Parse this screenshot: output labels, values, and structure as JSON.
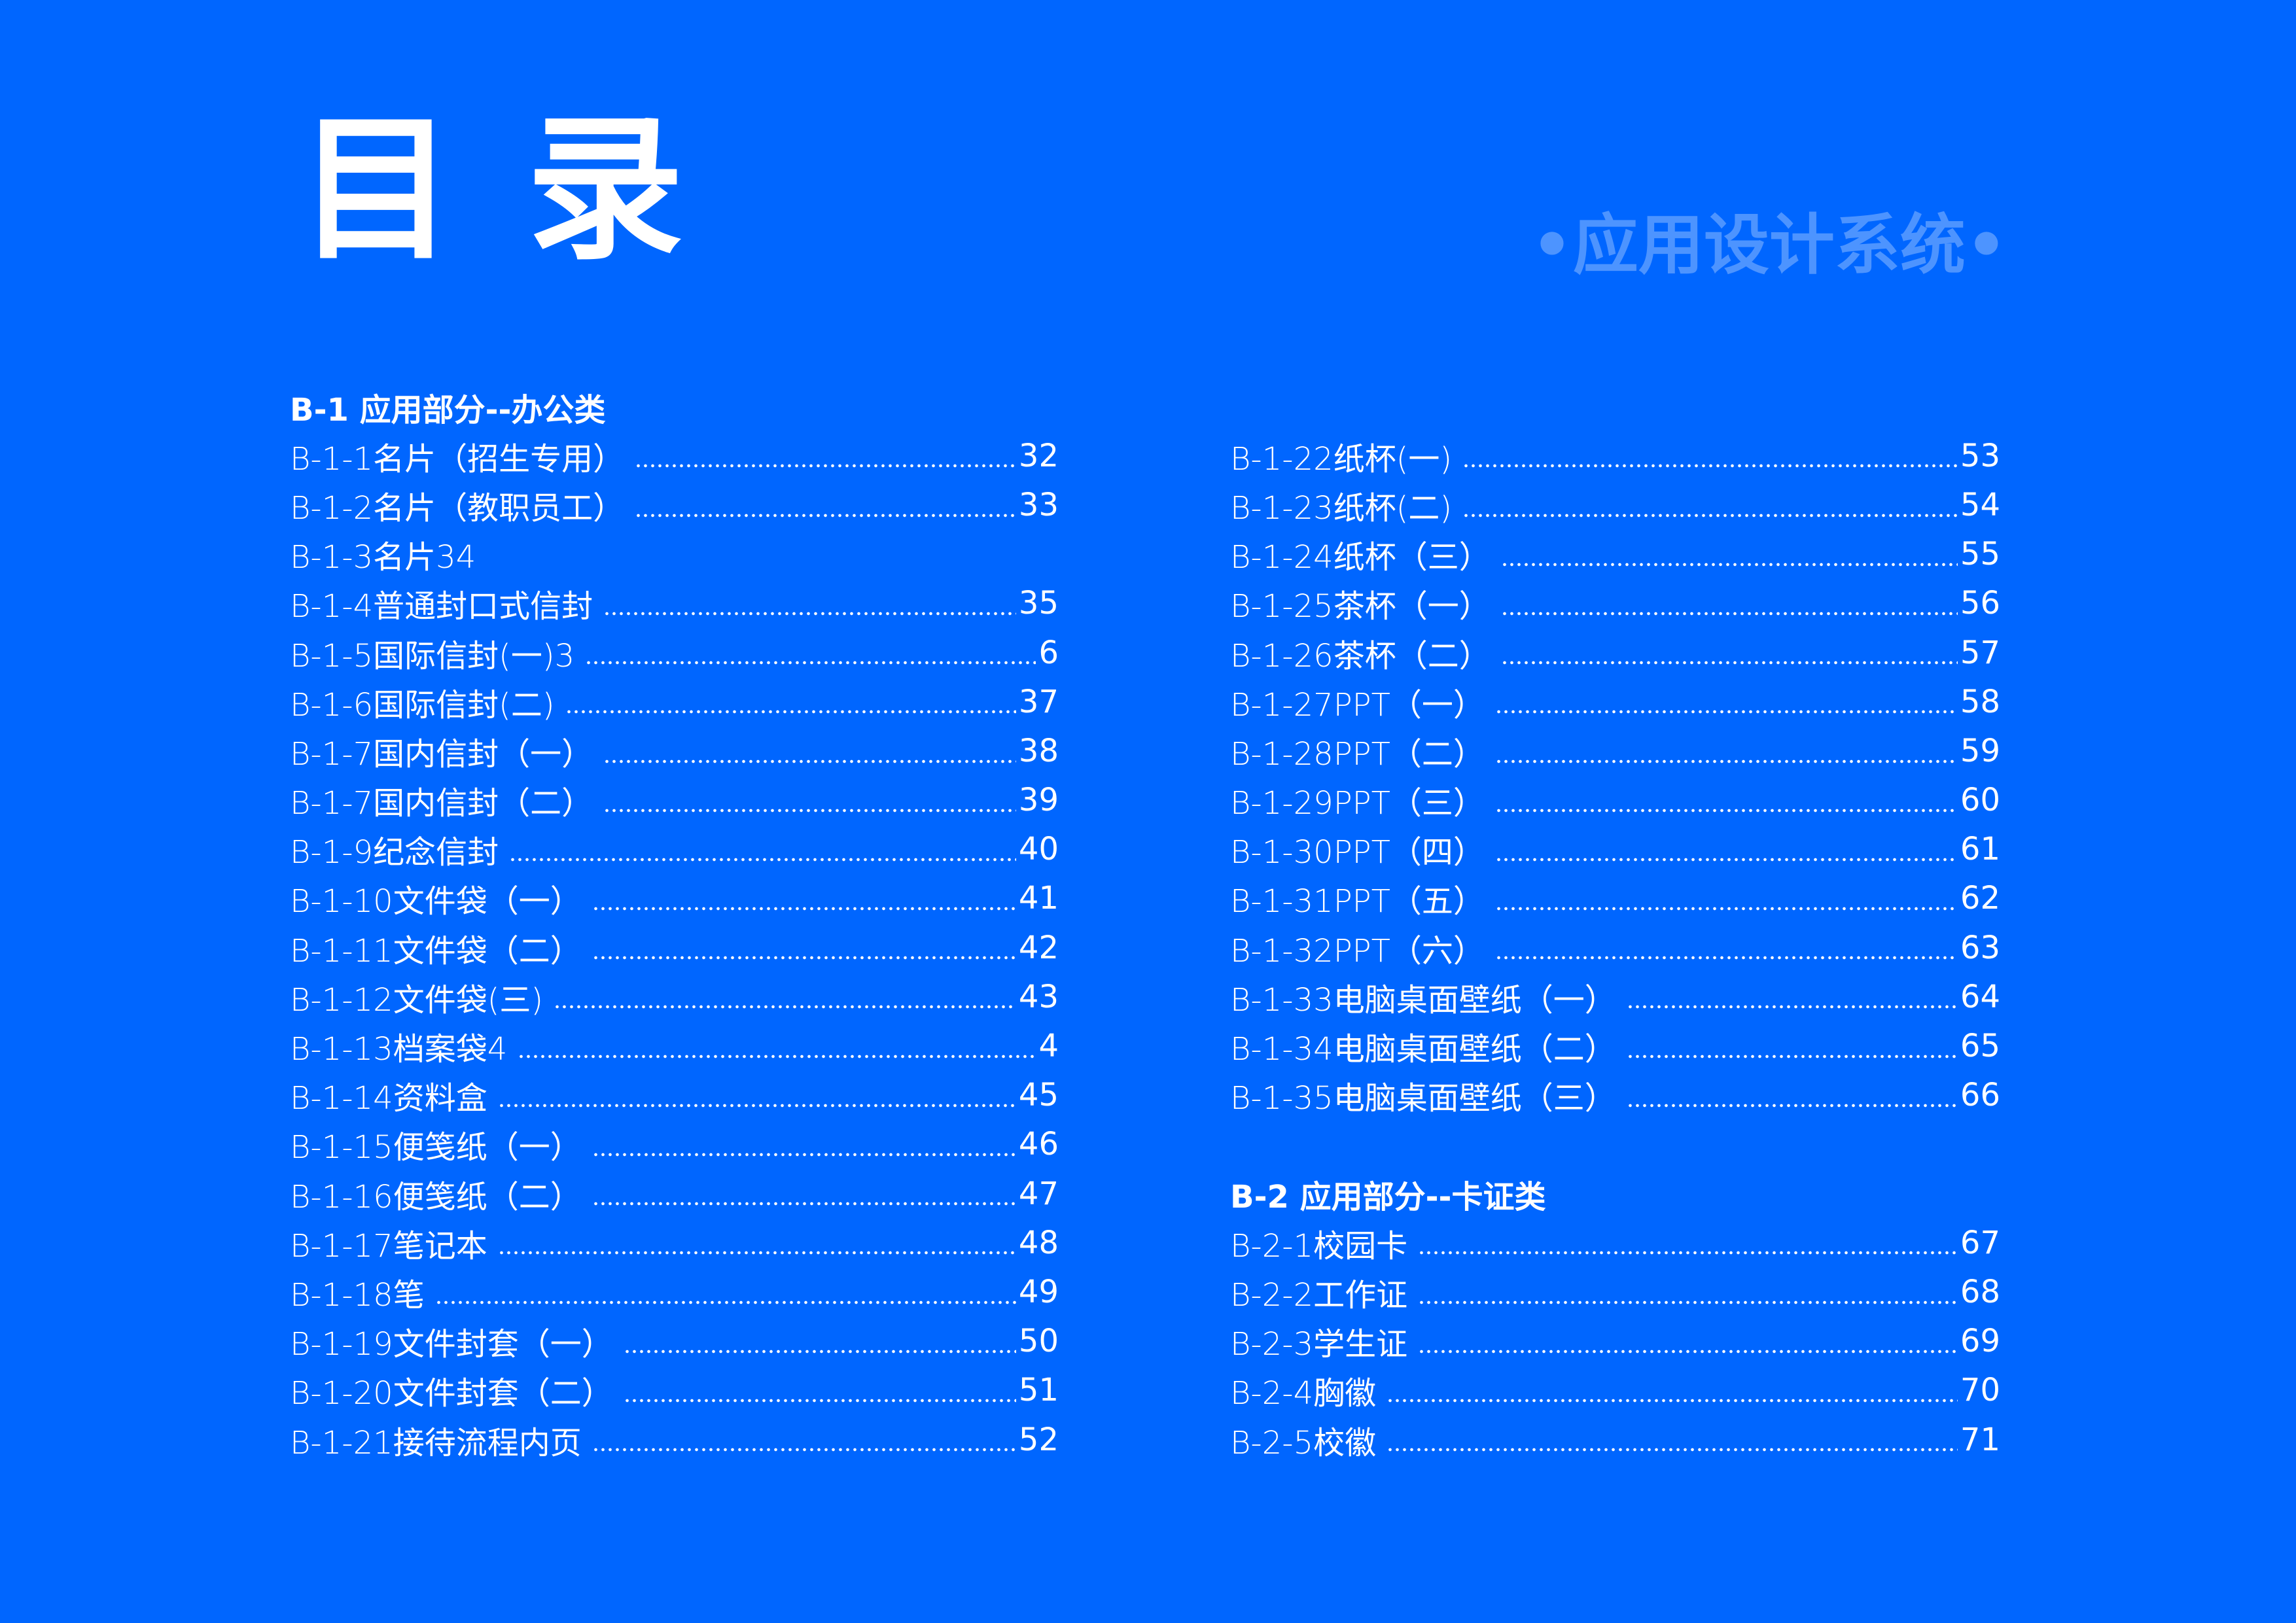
{
  "title": "目录",
  "subtitle": "•应用设计系统•",
  "colors": {
    "background": "#0066FF",
    "subtitle": "#4D94FF",
    "text": "#FFFFFF"
  },
  "sections": {
    "b1": {
      "heading": "B-1 应用部分--办公类",
      "items": [
        {
          "label": "B-1-1名片（招生专用）",
          "page": "32"
        },
        {
          "label": "B-1-2名片（教职员工）",
          "page": "33"
        },
        {
          "label": "B-1-3名片34",
          "page": ""
        },
        {
          "label": "B-1-4普通封口式信封",
          "page": "35"
        },
        {
          "label": "B-1-5国际信封(一)3",
          "page": "6"
        },
        {
          "label": "B-1-6国际信封(二)",
          "page": "37"
        },
        {
          "label": "B-1-7国内信封（一）",
          "page": "38"
        },
        {
          "label": "B-1-7国内信封（二）",
          "page": "39"
        },
        {
          "label": "B-1-9纪念信封",
          "page": "40"
        },
        {
          "label": "B-1-10文件袋（一）",
          "page": "41"
        },
        {
          "label": "B-1-11文件袋（二）",
          "page": "42"
        },
        {
          "label": "B-1-12文件袋(三)",
          "page": "43"
        },
        {
          "label": "B-1-13档案袋4",
          "page": "4"
        },
        {
          "label": "B-1-14资料盒",
          "page": "45"
        },
        {
          "label": "B-1-15便笺纸（一）",
          "page": "46"
        },
        {
          "label": "B-1-16便笺纸（二）",
          "page": "47"
        },
        {
          "label": "B-1-17笔记本",
          "page": "48"
        },
        {
          "label": "B-1-18笔",
          "page": "49"
        },
        {
          "label": "B-1-19文件封套（一）",
          "page": "50"
        },
        {
          "label": "B-1-20文件封套（二）",
          "page": "51"
        },
        {
          "label": "B-1-21接待流程内页",
          "page": "52"
        },
        {
          "label": "B-1-22纸杯(一)",
          "page": "53"
        },
        {
          "label": "B-1-23纸杯(二)",
          "page": "54"
        },
        {
          "label": "B-1-24纸杯（三）",
          "page": "55"
        },
        {
          "label": "B-1-25茶杯（一）",
          "page": "56"
        },
        {
          "label": "B-1-26茶杯（二）",
          "page": "57"
        },
        {
          "label": "B-1-27PPT（一）",
          "page": "58"
        },
        {
          "label": "B-1-28PPT（二）",
          "page": "59"
        },
        {
          "label": "B-1-29PPT（三）",
          "page": "60"
        },
        {
          "label": "B-1-30PPT（四）",
          "page": "61"
        },
        {
          "label": "B-1-31PPT（五）",
          "page": "62"
        },
        {
          "label": "B-1-32PPT（六）",
          "page": "63"
        },
        {
          "label": "B-1-33电脑桌面壁纸（一）",
          "page": "64"
        },
        {
          "label": "B-1-34电脑桌面壁纸（二）",
          "page": "65"
        },
        {
          "label": "B-1-35电脑桌面壁纸（三）",
          "page": "66"
        }
      ]
    },
    "b2": {
      "heading": "B-2 应用部分--卡证类",
      "items": [
        {
          "label": "B-2-1校园卡",
          "page": "67"
        },
        {
          "label": "B-2-2工作证",
          "page": "68"
        },
        {
          "label": "B-2-3学生证",
          "page": "69"
        },
        {
          "label": "B-2-4胸徽",
          "page": "70"
        },
        {
          "label": "B-2-5校徽",
          "page": "71"
        }
      ]
    }
  }
}
